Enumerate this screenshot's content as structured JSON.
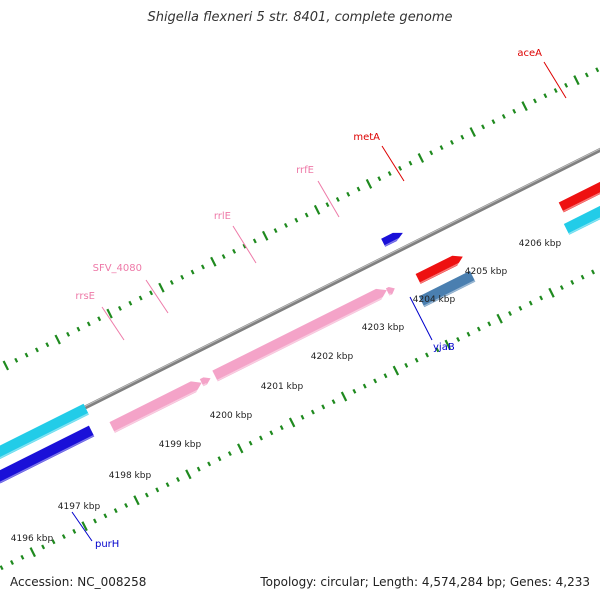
{
  "title": "Shigella flexneri 5 str. 8401, complete genome",
  "footer": {
    "accession": "Accession: NC_008258",
    "topology": "Topology: circular; Length: 4,574,284 bp; Genes: 4,233"
  },
  "colors": {
    "backbone": "#808080",
    "tick": "#1f8a1f",
    "rRNA": "#f4a3c8",
    "cds_dark_blue": "#1a10d8",
    "cds_cyan": "#22cce8",
    "cds_red": "#ee1111",
    "cds_steel": "#4a7fb0",
    "label_red": "#dd0000",
    "label_pink": "#ee7aa8",
    "label_blue": "#0000cc",
    "ruler_text": "#222222"
  },
  "ruler_labels": [
    "4196 kbp",
    "4197 kbp",
    "4198 kbp",
    "4199 kbp",
    "4200 kbp",
    "4201 kbp",
    "4202 kbp",
    "4203 kbp",
    "4204 kbp",
    "4205 kbp",
    "4206 kbp"
  ],
  "features": [
    {
      "name": "purH",
      "type": "cds",
      "color_key": "cds_dark_blue",
      "label_color_key": "label_blue"
    },
    {
      "name": "rrsE",
      "type": "rRNA",
      "color_key": "rRNA",
      "label_color_key": "label_pink"
    },
    {
      "name": "SFV_4080",
      "type": "rRNA",
      "color_key": "rRNA",
      "label_color_key": "label_pink"
    },
    {
      "name": "rrlE",
      "type": "rRNA",
      "color_key": "rRNA",
      "label_color_key": "label_pink"
    },
    {
      "name": "rrfE",
      "type": "rRNA",
      "color_key": "rRNA",
      "label_color_key": "label_pink"
    },
    {
      "name": "yjaB",
      "type": "cds",
      "color_key": "cds_dark_blue",
      "label_color_key": "label_blue"
    },
    {
      "name": "metA",
      "type": "cds",
      "color_key": "cds_red",
      "label_color_key": "label_red"
    },
    {
      "name": "aceA",
      "type": "cds",
      "color_key": "cds_cyan",
      "label_color_key": "label_red"
    }
  ]
}
